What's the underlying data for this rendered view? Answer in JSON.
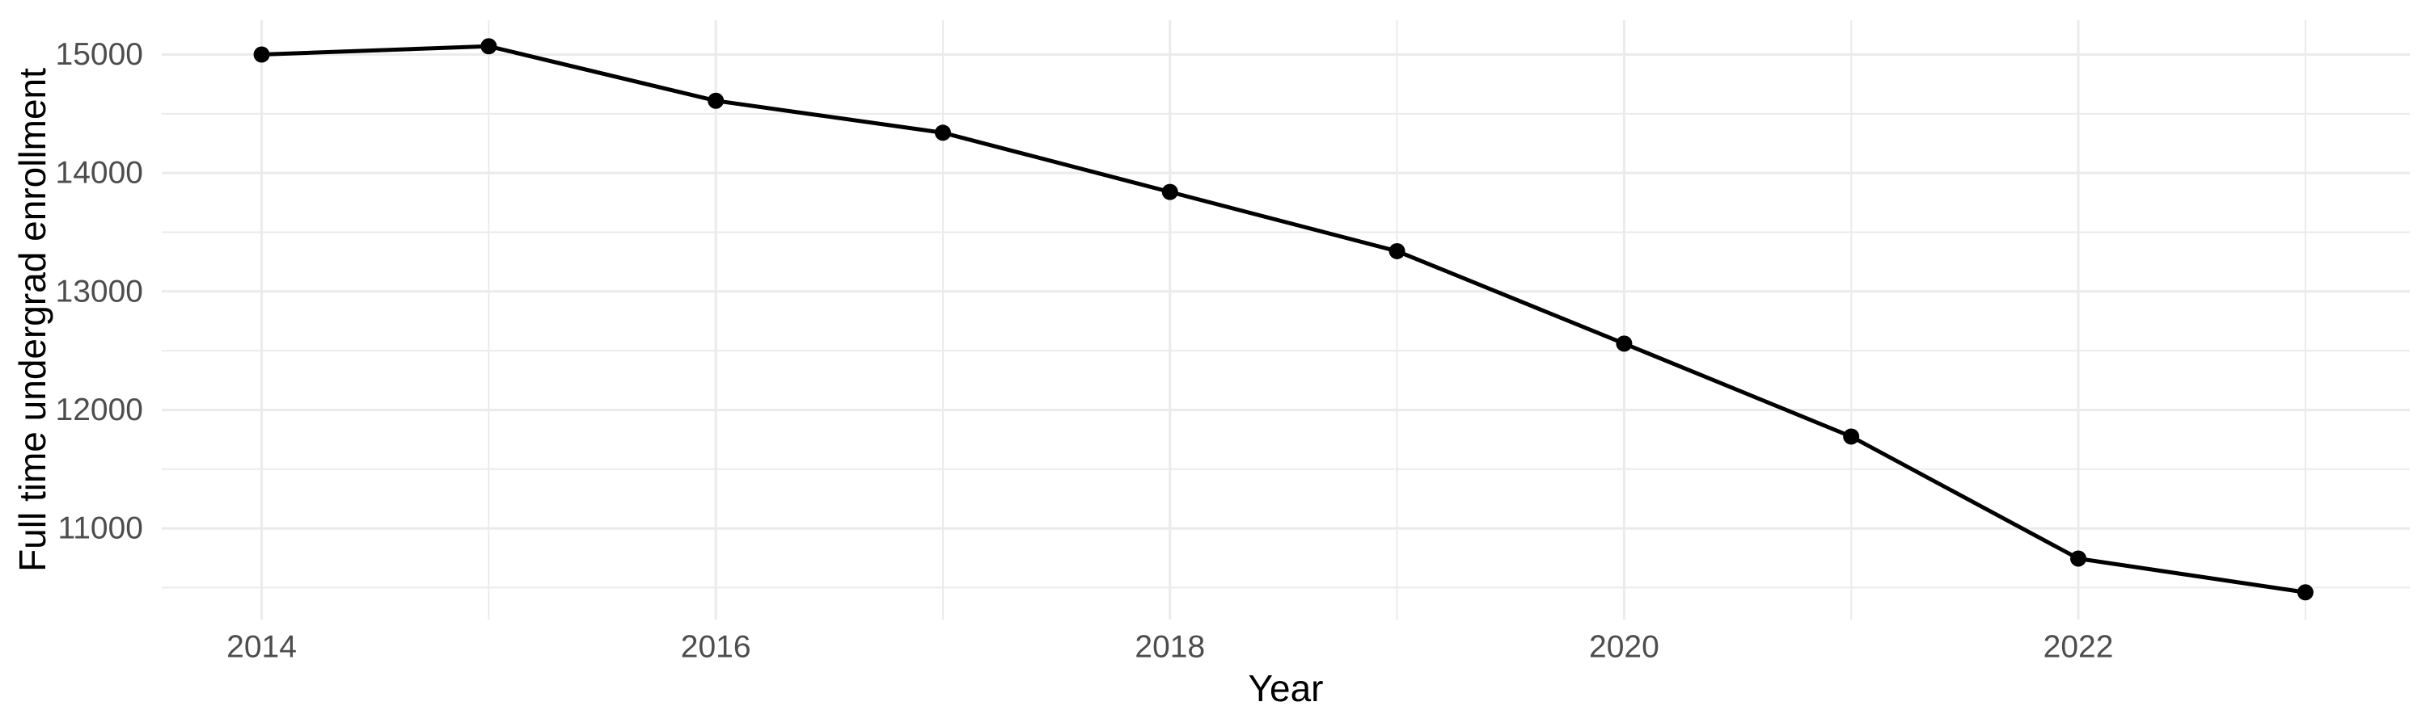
{
  "chart_data": {
    "type": "line",
    "title": "",
    "xlabel": "Year",
    "ylabel": "Full time undergrad enrollment",
    "x": [
      2014,
      2015,
      2016,
      2017,
      2018,
      2019,
      2020,
      2021,
      2022,
      2023
    ],
    "series": [
      {
        "name": "Full time undergrad enrollment",
        "values": [
          15000,
          15070,
          14610,
          14340,
          13840,
          13340,
          12560,
          11775,
          10745,
          10460
        ]
      }
    ],
    "xlim": [
      2013.56,
      2023.46
    ],
    "ylim": [
      10230,
      15290
    ],
    "x_ticks_major": [
      2014,
      2016,
      2018,
      2020,
      2022
    ],
    "x_ticks_minor": [
      2015,
      2017,
      2019,
      2021,
      2023
    ],
    "y_ticks_major": [
      15000,
      14000,
      13000,
      12000,
      11000
    ],
    "y_ticks_minor": [
      14500,
      13500,
      12500,
      11500,
      10500
    ],
    "grid": "on",
    "legend": "none",
    "marker": "circle",
    "colors": {
      "background": "#ffffff",
      "grid_major": "#ebebeb",
      "grid_minor": "#ebebeb",
      "line": "#000000",
      "point": "#000000",
      "tick_text": "#4d4d4d",
      "axis_title_text": "#000000"
    }
  }
}
